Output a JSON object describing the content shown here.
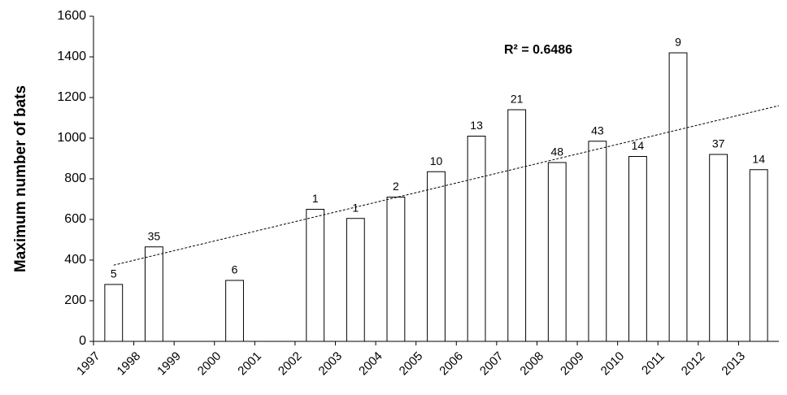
{
  "chart_data": {
    "type": "bar",
    "ylabel": "Maximum number of bats",
    "categories": [
      "1997",
      "1998",
      "1999",
      "2000",
      "2001",
      "2002",
      "2003",
      "2004",
      "2005",
      "2006",
      "2007",
      "2008",
      "2009",
      "2010",
      "2011",
      "2012",
      "2013"
    ],
    "values": [
      280,
      465,
      null,
      300,
      null,
      650,
      605,
      710,
      835,
      1010,
      1140,
      880,
      985,
      910,
      1420,
      920,
      845
    ],
    "value_labels": [
      "5",
      "35",
      null,
      "6",
      null,
      "1",
      "1",
      "2",
      "10",
      "13",
      "21",
      "48",
      "43",
      "14",
      "9",
      "37",
      "14"
    ],
    "color": "#ffffff",
    "ylim": [
      0,
      1600
    ],
    "yticks": [
      0,
      200,
      400,
      600,
      800,
      1000,
      1200,
      1400,
      1600
    ],
    "trendline": {
      "label": "R² = 0.6486",
      "values": [
        375,
        1160
      ]
    }
  }
}
